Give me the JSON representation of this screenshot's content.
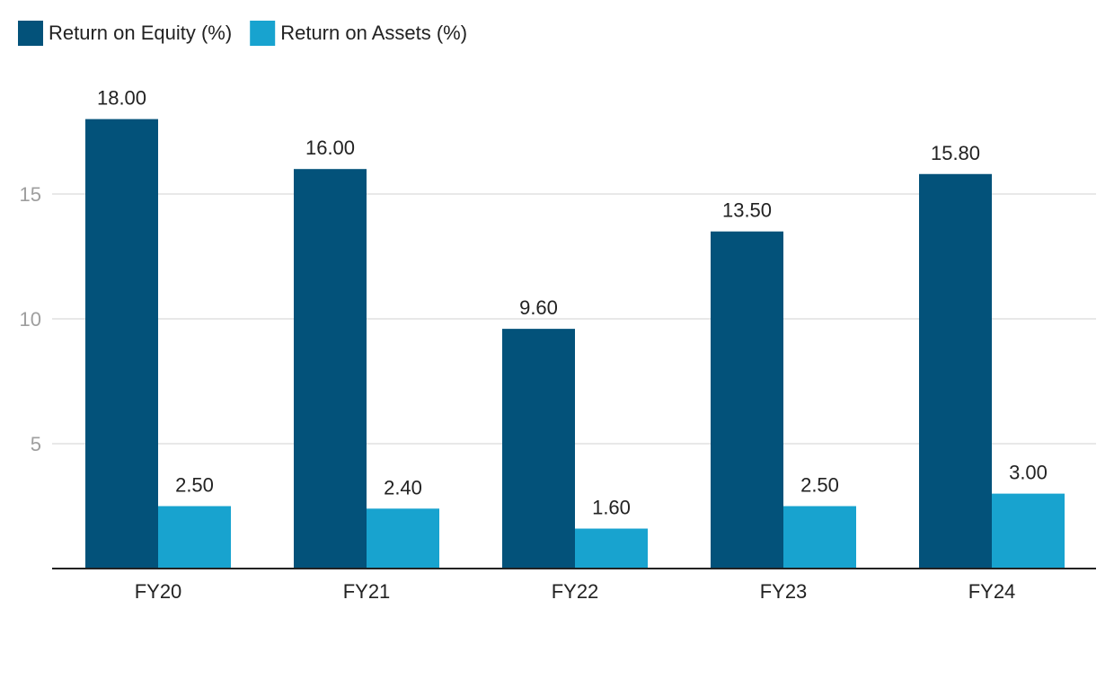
{
  "chart_data": {
    "type": "bar",
    "categories": [
      "FY20",
      "FY21",
      "FY22",
      "FY23",
      "FY24"
    ],
    "series": [
      {
        "name": "Return on Equity (%)",
        "color": "#03527a",
        "values": [
          18.0,
          16.0,
          9.6,
          13.5,
          15.8
        ]
      },
      {
        "name": "Return on Assets (%)",
        "color": "#18a3cf",
        "values": [
          2.5,
          2.4,
          1.6,
          2.5,
          3.0
        ]
      }
    ],
    "value_labels": [
      [
        "18.00",
        "16.00",
        "9.60",
        "13.50",
        "15.80"
      ],
      [
        "2.50",
        "2.40",
        "1.60",
        "2.50",
        "3.00"
      ]
    ],
    "yticks": [
      5,
      10,
      15
    ],
    "ylim": [
      0,
      18
    ],
    "grid": true,
    "legend_position": "top-left",
    "title": "",
    "xlabel": "",
    "ylabel": ""
  }
}
